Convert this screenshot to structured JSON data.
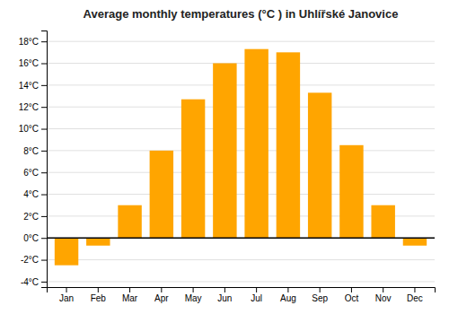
{
  "chart_data": {
    "type": "bar",
    "title": "Average monthly temperatures (°C ) in Uhlířské Janovice",
    "categories": [
      "Jan",
      "Feb",
      "Mar",
      "Apr",
      "May",
      "Jun",
      "Jul",
      "Aug",
      "Sep",
      "Oct",
      "Nov",
      "Dec"
    ],
    "values": [
      -2.5,
      -0.7,
      3.0,
      8.0,
      12.7,
      16.0,
      17.3,
      17.0,
      13.3,
      8.5,
      3.0,
      -0.7
    ],
    "color": "#FFA500",
    "ylim": [
      -4.5,
      19
    ],
    "yticks": [
      {
        "value": -4,
        "label": "-4°C"
      },
      {
        "value": -2,
        "label": "-2°C"
      },
      {
        "value": 0,
        "label": "0°C"
      },
      {
        "value": 2,
        "label": "2°C"
      },
      {
        "value": 4,
        "label": "4°C"
      },
      {
        "value": 6,
        "label": "6°C"
      },
      {
        "value": 8,
        "label": "8°C"
      },
      {
        "value": 10,
        "label": "10°C"
      },
      {
        "value": 12,
        "label": "12°C"
      },
      {
        "value": 14,
        "label": "14°C"
      },
      {
        "value": 16,
        "label": "16°C"
      },
      {
        "value": 18,
        "label": "18°C"
      }
    ],
    "grid": true
  }
}
